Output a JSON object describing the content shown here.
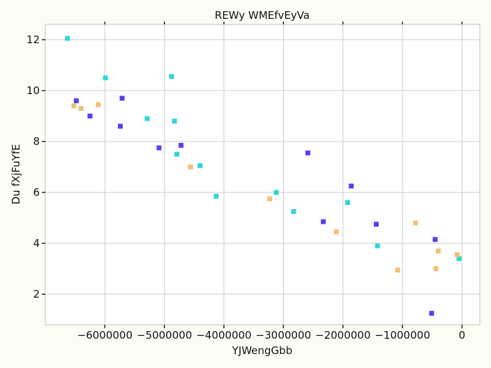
{
  "chart_data": {
    "type": "scatter",
    "title": "REWy WMEfvEyVa",
    "xlabel": "YJWengGbb",
    "ylabel": "Du fXjFuYfE",
    "xlim": [
      -7000000,
      300000
    ],
    "ylim": [
      0.8,
      12.6
    ],
    "xticks": [
      -6000000,
      -5000000,
      -4000000,
      -3000000,
      -2000000,
      -1000000,
      0
    ],
    "xtick_labels": [
      "−6000000",
      "−5000000",
      "−4000000",
      "−3000000",
      "−2000000",
      "−1000000",
      "0"
    ],
    "yticks": [
      2,
      4,
      6,
      8,
      10,
      12
    ],
    "ytick_labels": [
      "2",
      "4",
      "6",
      "8",
      "10",
      "12"
    ],
    "grid": true,
    "series": [
      {
        "color": "#5b3df5",
        "points": [
          [
            -6480000,
            9.6
          ],
          [
            -6250000,
            9.0
          ],
          [
            -5710000,
            9.7
          ],
          [
            -5740000,
            8.6
          ],
          [
            -5090000,
            7.75
          ],
          [
            -4720000,
            7.85
          ],
          [
            -2590000,
            7.55
          ],
          [
            -1860000,
            6.25
          ],
          [
            -2330000,
            4.85
          ],
          [
            -1440000,
            4.75
          ],
          [
            -450000,
            4.15
          ],
          [
            -510000,
            1.25
          ]
        ]
      },
      {
        "color": "#2fd6d6",
        "points": [
          [
            -6630000,
            12.05
          ],
          [
            -5990000,
            10.5
          ],
          [
            -4880000,
            10.55
          ],
          [
            -5290000,
            8.9
          ],
          [
            -4830000,
            8.8
          ],
          [
            -4790000,
            7.5
          ],
          [
            -4400000,
            7.05
          ],
          [
            -4130000,
            5.85
          ],
          [
            -3120000,
            6.0
          ],
          [
            -2830000,
            5.25
          ],
          [
            -1920000,
            5.6
          ],
          [
            -1420000,
            3.9
          ],
          [
            -50000,
            3.4
          ]
        ]
      },
      {
        "color": "#f0c074",
        "points": [
          [
            -6520000,
            9.4
          ],
          [
            -6400000,
            9.3
          ],
          [
            -6110000,
            9.45
          ],
          [
            -4560000,
            7.0
          ],
          [
            -3230000,
            5.75
          ],
          [
            -2110000,
            4.45
          ],
          [
            -1080000,
            2.95
          ],
          [
            -780000,
            4.8
          ],
          [
            -400000,
            3.7
          ],
          [
            -440000,
            3.0
          ],
          [
            -80000,
            3.55
          ]
        ]
      }
    ]
  }
}
